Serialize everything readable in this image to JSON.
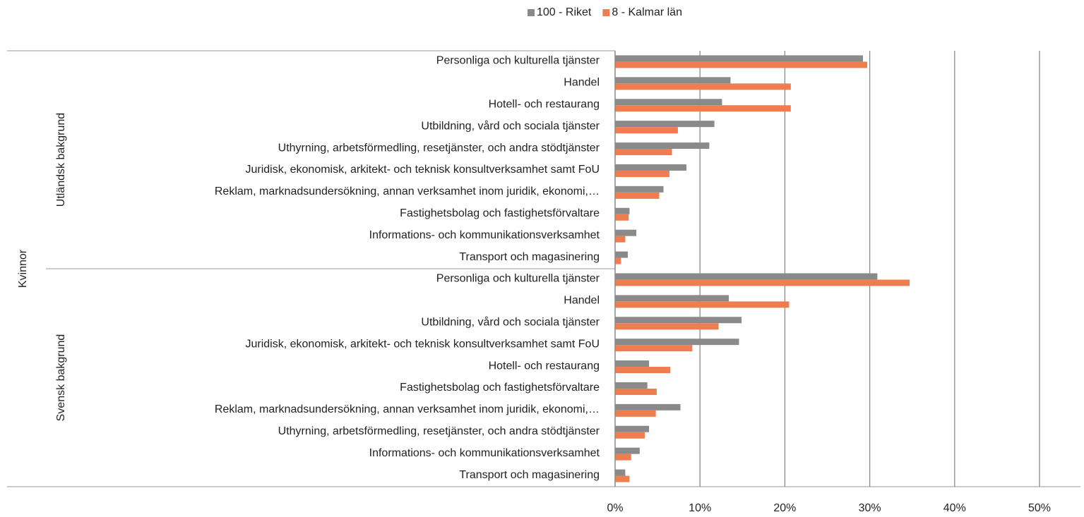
{
  "chart_data": {
    "type": "bar",
    "orientation": "horizontal",
    "outer_label": "Kvinnor",
    "category_groups": [
      {
        "name": "Utländsk bakgrund",
        "categories": [
          "Personliga och kulturella tjänster",
          "Handel",
          "Hotell- och restaurang",
          "Utbildning, vård och sociala tjänster",
          "Uthyrning, arbetsförmedling, resetjänster, och andra stödtjänster",
          "Juridisk, ekonomisk, arkitekt- och teknisk konsultverksamhet samt FoU",
          "Reklam, marknadsundersökning, annan verksamhet inom juridik, ekonomi,…",
          "Fastighetsbolag och fastighetsförvaltare",
          "Informations- och kommunikationsverksamhet",
          "Transport och magasinering"
        ]
      },
      {
        "name": "Svensk bakgrund",
        "categories": [
          "Personliga och kulturella tjänster",
          "Handel",
          "Utbildning, vård och sociala tjänster",
          "Juridisk, ekonomisk, arkitekt- och teknisk konsultverksamhet samt FoU",
          "Hotell- och restaurang",
          "Fastighetsbolag och fastighetsförvaltare",
          "Reklam, marknadsundersökning, annan verksamhet inom juridik, ekonomi,…",
          "Uthyrning, arbetsförmedling, resetjänster, och andra stödtjänster",
          "Informations- och kommunikationsverksamhet",
          "Transport och magasinering"
        ]
      }
    ],
    "series": [
      {
        "name": "100 - Riket",
        "color": "#8a8a8a",
        "values": [
          29.2,
          13.6,
          12.6,
          11.7,
          11.1,
          8.4,
          5.7,
          1.7,
          2.5,
          1.5,
          30.9,
          13.4,
          14.9,
          14.6,
          4.0,
          3.8,
          7.7,
          4.0,
          2.9,
          1.2
        ]
      },
      {
        "name": "8 - Kalmar län",
        "color": "#ee7d4f",
        "values": [
          29.7,
          20.7,
          20.7,
          7.4,
          6.7,
          6.4,
          5.2,
          1.6,
          1.2,
          0.7,
          34.7,
          20.5,
          12.2,
          9.1,
          6.5,
          4.9,
          4.8,
          3.5,
          1.9,
          1.7
        ]
      }
    ],
    "xlim": [
      0,
      50
    ],
    "xticks": [
      {
        "value": 0,
        "label": "0%"
      },
      {
        "value": 10,
        "label": "10%"
      },
      {
        "value": 20,
        "label": "20%"
      },
      {
        "value": 30,
        "label": "30%"
      },
      {
        "value": 40,
        "label": "40%"
      },
      {
        "value": 50,
        "label": "50%"
      }
    ],
    "grid": true,
    "legend": "top"
  }
}
